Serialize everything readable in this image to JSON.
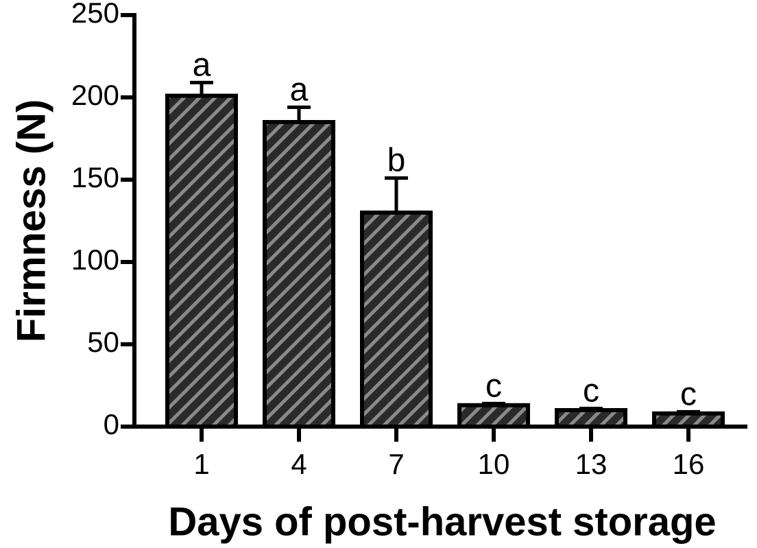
{
  "chart_data": {
    "type": "bar",
    "x_label": "Days of post-harvest storage",
    "y_label": "Firmness (N)",
    "categories": [
      "1",
      "4",
      "7",
      "10",
      "13",
      "16"
    ],
    "values": [
      201,
      185,
      130,
      13,
      10,
      8
    ],
    "errors": [
      8,
      9,
      21,
      1,
      1,
      1
    ],
    "annotations": [
      "a",
      "a",
      "b",
      "c",
      "c",
      "c"
    ],
    "color": "#3a3a3a",
    "ylim": [
      0,
      250
    ],
    "yticks": [
      0,
      50,
      100,
      150,
      200,
      250
    ]
  }
}
